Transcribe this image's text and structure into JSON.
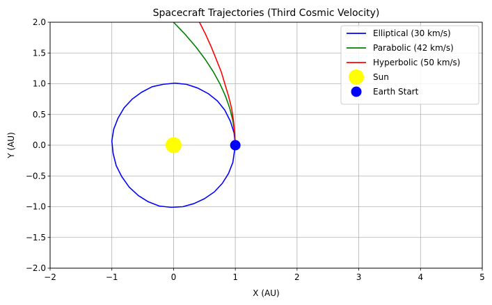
{
  "chart_data": {
    "type": "line",
    "title": "Spacecraft Trajectories (Third Cosmic Velocity)",
    "xlabel": "X (AU)",
    "ylabel": "Y (AU)",
    "xlim": [
      -2,
      5
    ],
    "ylim": [
      -2,
      2
    ],
    "xticks": [
      "−2",
      "−1",
      "0",
      "1",
      "2",
      "3",
      "4",
      "5"
    ],
    "yticks": [
      "−2.0",
      "−1.5",
      "−1.0",
      "−0.5",
      "0.0",
      "0.5",
      "1.0",
      "1.5",
      "2.0"
    ],
    "xtick_values": [
      -2,
      -1,
      0,
      1,
      2,
      3,
      4,
      5
    ],
    "ytick_values": [
      -2,
      -1.5,
      -1,
      -0.5,
      0,
      0.5,
      1,
      1.5,
      2
    ],
    "grid": true,
    "legend_position": "top-right",
    "series": [
      {
        "name": "Elliptical (30 km/s)",
        "color": "#0000ff",
        "kind": "line",
        "x": [
          1.0,
          0.98,
          0.92,
          0.83,
          0.71,
          0.56,
          0.39,
          0.21,
          0.02,
          -0.17,
          -0.35,
          -0.52,
          -0.67,
          -0.8,
          -0.9,
          -0.97,
          -1.0,
          -0.98,
          -0.93,
          -0.84,
          -0.72,
          -0.57,
          -0.41,
          -0.23,
          -0.04,
          0.15,
          0.33,
          0.5,
          0.66,
          0.79,
          0.89,
          0.96,
          1.0
        ],
        "y": [
          0.0,
          0.2,
          0.39,
          0.57,
          0.72,
          0.84,
          0.93,
          0.99,
          1.01,
          0.99,
          0.95,
          0.86,
          0.75,
          0.61,
          0.44,
          0.26,
          0.07,
          -0.13,
          -0.33,
          -0.51,
          -0.68,
          -0.82,
          -0.92,
          -0.99,
          -1.01,
          -1.0,
          -0.95,
          -0.87,
          -0.76,
          -0.62,
          -0.46,
          -0.28,
          0.0
        ]
      },
      {
        "name": "Parabolic (42 km/s)",
        "color": "#008000",
        "kind": "line",
        "x": [
          1.0,
          0.99,
          0.96,
          0.91,
          0.84,
          0.75,
          0.64,
          0.51,
          0.36,
          0.19,
          0.0
        ],
        "y": [
          0.0,
          0.2,
          0.4,
          0.6,
          0.8,
          1.0,
          1.2,
          1.4,
          1.6,
          1.8,
          2.0
        ]
      },
      {
        "name": "Hyperbolic (50 km/s)",
        "color": "#ff0000",
        "kind": "line",
        "x": [
          1.0,
          0.99,
          0.97,
          0.94,
          0.89,
          0.83,
          0.77,
          0.69,
          0.61,
          0.52,
          0.42
        ],
        "y": [
          0.0,
          0.2,
          0.4,
          0.6,
          0.8,
          1.0,
          1.2,
          1.4,
          1.6,
          1.8,
          2.0
        ]
      },
      {
        "name": "Sun",
        "color": "#ffff00",
        "kind": "point",
        "x": [
          0
        ],
        "y": [
          0
        ]
      },
      {
        "name": "Earth Start",
        "color": "#0000ff",
        "kind": "point",
        "x": [
          1
        ],
        "y": [
          0
        ]
      }
    ]
  }
}
